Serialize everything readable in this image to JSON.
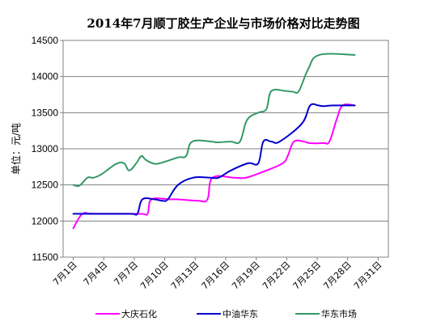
{
  "chart_data": {
    "type": "line",
    "title": "2014年7月顺丁胶生产企业与市场价格对比走势图",
    "ylabel": "单位：元/吨",
    "xlabel": "",
    "ylim": [
      11500,
      14500
    ],
    "yticks": [
      11500,
      12000,
      12500,
      13000,
      13500,
      14000,
      14500
    ],
    "x_tick_labels": [
      "7月1日",
      "7月4日",
      "7月7日",
      "7月10日",
      "7月13日",
      "7月16日",
      "7月19日",
      "7月22日",
      "7月25日",
      "7月28日",
      "7月31日"
    ],
    "x_tick_days": [
      1,
      4,
      7,
      10,
      13,
      16,
      19,
      22,
      25,
      28,
      31
    ],
    "xlim": [
      0,
      32
    ],
    "grid": "horizontal",
    "legend_position": "bottom",
    "series": [
      {
        "name": "大庆石化",
        "color": "#ff00ff",
        "points": [
          [
            1,
            11900
          ],
          [
            1.9,
            12100
          ],
          [
            3,
            12100
          ],
          [
            7.5,
            12100
          ],
          [
            8.3,
            12100
          ],
          [
            8.7,
            12300
          ],
          [
            10.5,
            12300
          ],
          [
            11.3,
            12300
          ],
          [
            13.3,
            12280
          ],
          [
            14.2,
            12300
          ],
          [
            14.7,
            12600
          ],
          [
            16.8,
            12600
          ],
          [
            18,
            12600
          ],
          [
            20,
            12700
          ],
          [
            21.6,
            12800
          ],
          [
            22.1,
            12900
          ],
          [
            22.7,
            13100
          ],
          [
            23.7,
            13100
          ],
          [
            24.2,
            13080
          ],
          [
            25.6,
            13080
          ],
          [
            26.2,
            13100
          ],
          [
            26.9,
            13400
          ],
          [
            27.5,
            13600
          ],
          [
            28.7,
            13600
          ]
        ]
      },
      {
        "name": "中油华东",
        "color": "#0000cc",
        "points": [
          [
            1,
            12100
          ],
          [
            3,
            12100
          ],
          [
            6.6,
            12100
          ],
          [
            7.3,
            12100
          ],
          [
            7.8,
            12300
          ],
          [
            9,
            12300
          ],
          [
            9.8,
            12280
          ],
          [
            10.3,
            12300
          ],
          [
            11.3,
            12500
          ],
          [
            12.8,
            12600
          ],
          [
            14.5,
            12600
          ],
          [
            15.3,
            12600
          ],
          [
            16.5,
            12700
          ],
          [
            18.2,
            12800
          ],
          [
            19.2,
            12800
          ],
          [
            19.7,
            13100
          ],
          [
            20.5,
            13100
          ],
          [
            21.3,
            13100
          ],
          [
            23.5,
            13350
          ],
          [
            24.3,
            13600
          ],
          [
            25.1,
            13600
          ],
          [
            25.6,
            13590
          ],
          [
            26.5,
            13600
          ],
          [
            28.7,
            13600
          ]
        ]
      },
      {
        "name": "华东市场",
        "color": "#339966",
        "points": [
          [
            1,
            12500
          ],
          [
            1.6,
            12490
          ],
          [
            2.4,
            12600
          ],
          [
            3,
            12600
          ],
          [
            3.8,
            12650
          ],
          [
            5.2,
            12790
          ],
          [
            6,
            12800
          ],
          [
            6.5,
            12700
          ],
          [
            7.2,
            12800
          ],
          [
            7.7,
            12900
          ],
          [
            8.1,
            12850
          ],
          [
            8.8,
            12800
          ],
          [
            9.5,
            12800
          ],
          [
            11.3,
            12880
          ],
          [
            12.1,
            12900
          ],
          [
            12.7,
            13100
          ],
          [
            14.6,
            13100
          ],
          [
            15.1,
            13090
          ],
          [
            16.5,
            13100
          ],
          [
            17.4,
            13100
          ],
          [
            18.1,
            13400
          ],
          [
            19.2,
            13500
          ],
          [
            20,
            13550
          ],
          [
            20.5,
            13800
          ],
          [
            21.9,
            13800
          ],
          [
            22.6,
            13790
          ],
          [
            23.2,
            13800
          ],
          [
            24.1,
            14100
          ],
          [
            25.2,
            14300
          ],
          [
            28.7,
            14300
          ]
        ]
      }
    ]
  }
}
